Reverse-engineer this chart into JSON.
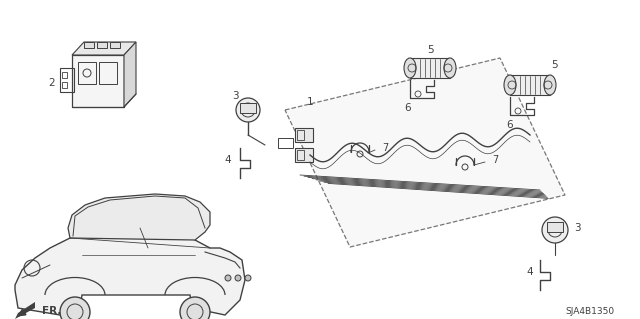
{
  "bg_color": "#ffffff",
  "line_color": "#404040",
  "text_color": "#404040",
  "fig_width": 6.4,
  "fig_height": 3.19,
  "dpi": 100,
  "diagram_code": "SJA4B1350",
  "fr_label": "FR."
}
